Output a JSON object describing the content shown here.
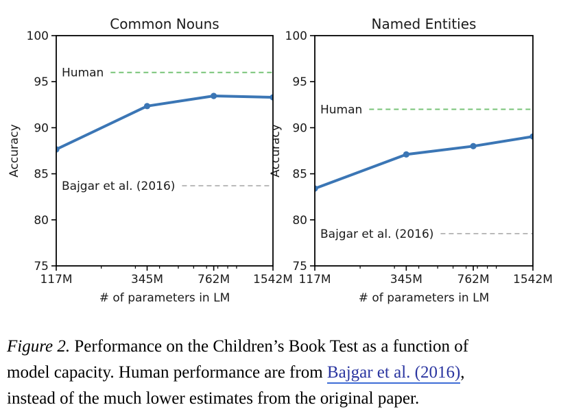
{
  "page": {
    "background": "#ffffff",
    "text_color": "#000000"
  },
  "chart_style": {
    "series_color": "#3b76b5",
    "human_line_color": "#77c377",
    "bajgar_line_color": "#aaaaaa",
    "axis_color": "#000000",
    "label_color": "#1a1a1a"
  },
  "chart_data": [
    {
      "type": "line",
      "title": "Common Nouns",
      "xlabel": "# of parameters in LM",
      "ylabel": "Accuracy",
      "x_scale": "log",
      "x_tick_labels": [
        "117M",
        "345M",
        "762M",
        "1542M"
      ],
      "x_values_millions": [
        117,
        345,
        762,
        1542
      ],
      "x_minor_ticks_millions": [
        200,
        300,
        400,
        500,
        600,
        700,
        800,
        900,
        1000
      ],
      "ylim": [
        75,
        100
      ],
      "yticks": [
        75,
        80,
        85,
        90,
        95,
        100
      ],
      "grid": false,
      "legend": false,
      "series": [
        {
          "values": [
            87.65,
            92.35,
            93.45,
            93.3
          ],
          "color": "#3b76b5",
          "marker": "circle"
        }
      ],
      "reference_lines": [
        {
          "label": "Human",
          "value": 96.0,
          "color": "#77c377",
          "style": "dashed"
        },
        {
          "label": "Bajgar et al. (2016)",
          "value": 83.7,
          "color": "#aaaaaa",
          "style": "dashed"
        }
      ]
    },
    {
      "type": "line",
      "title": "Named Entities",
      "xlabel": "# of parameters in LM",
      "ylabel": "Accuracy",
      "x_scale": "log",
      "x_tick_labels": [
        "117M",
        "345M",
        "762M",
        "1542M"
      ],
      "x_values_millions": [
        117,
        345,
        762,
        1542
      ],
      "x_minor_ticks_millions": [
        200,
        300,
        400,
        500,
        600,
        700,
        800,
        900,
        1000
      ],
      "ylim": [
        75,
        100
      ],
      "yticks": [
        75,
        80,
        85,
        90,
        95,
        100
      ],
      "grid": false,
      "legend": false,
      "series": [
        {
          "values": [
            83.4,
            87.1,
            88.0,
            89.05
          ],
          "color": "#3b76b5",
          "marker": "circle"
        }
      ],
      "reference_lines": [
        {
          "label": "Human",
          "value": 92.0,
          "color": "#77c377",
          "style": "dashed"
        },
        {
          "label": "Bajgar et al. (2016)",
          "value": 78.5,
          "color": "#aaaaaa",
          "style": "dashed"
        }
      ]
    }
  ],
  "caption": {
    "text_color": "#000000",
    "link_color": "#2a35a0",
    "link_underline_color": "#3c6cd6",
    "lines": [
      {
        "segments": [
          {
            "text": "Figure 2.",
            "style": "italic"
          },
          {
            "text": " Performance on the Children’s Book Test as a function of",
            "style": "plain"
          }
        ]
      },
      {
        "segments": [
          {
            "text": "model capacity. Human performance are from ",
            "style": "plain"
          },
          {
            "text": "Bajgar et al. (2016)",
            "style": "link"
          },
          {
            "text": ",",
            "style": "plain"
          }
        ]
      },
      {
        "segments": [
          {
            "text": "instead of the much lower estimates from the original paper.",
            "style": "plain"
          }
        ]
      }
    ]
  }
}
